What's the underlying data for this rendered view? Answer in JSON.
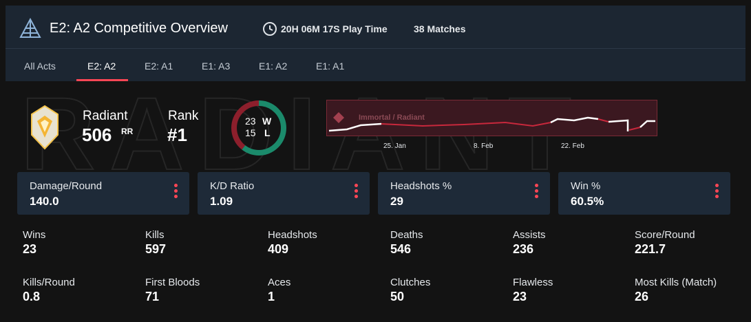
{
  "header": {
    "title": "E2: A2 Competitive Overview",
    "play_time": "20H 06M 17S Play Time",
    "matches": "38 Matches"
  },
  "tabs": [
    "All Acts",
    "E2: A2",
    "E2: A1",
    "E1: A3",
    "E1: A2",
    "E1: A1"
  ],
  "active_tab": 1,
  "rank": {
    "watermark": "RADIANT",
    "tier": "Radiant",
    "rr": "506",
    "rr_unit": "RR",
    "rank_label": "Rank",
    "rank": "#1"
  },
  "record": {
    "wins": 23,
    "wins_label": "W",
    "losses": 15,
    "losses_label": "L"
  },
  "rating_chart": {
    "band": "Immortal / Radiant",
    "dates": [
      "25. Jan",
      "8. Feb",
      "22. Feb"
    ]
  },
  "cards": [
    {
      "label": "Damage/Round",
      "value": "140.0"
    },
    {
      "label": "K/D Ratio",
      "value": "1.09"
    },
    {
      "label": "Headshots %",
      "value": "29"
    },
    {
      "label": "Win %",
      "value": "60.5%"
    }
  ],
  "stats": [
    {
      "label": "Wins",
      "value": "23"
    },
    {
      "label": "Kills",
      "value": "597"
    },
    {
      "label": "Headshots",
      "value": "409"
    },
    {
      "label": "Deaths",
      "value": "546"
    },
    {
      "label": "Assists",
      "value": "236"
    },
    {
      "label": "Score/Round",
      "value": "221.7"
    },
    {
      "label": "Kills/Round",
      "value": "0.8"
    },
    {
      "label": "First Bloods",
      "value": "71"
    },
    {
      "label": "Aces",
      "value": "1"
    },
    {
      "label": "Clutches",
      "value": "50"
    },
    {
      "label": "Flawless",
      "value": "23"
    },
    {
      "label": "Most Kills (Match)",
      "value": "26"
    }
  ]
}
